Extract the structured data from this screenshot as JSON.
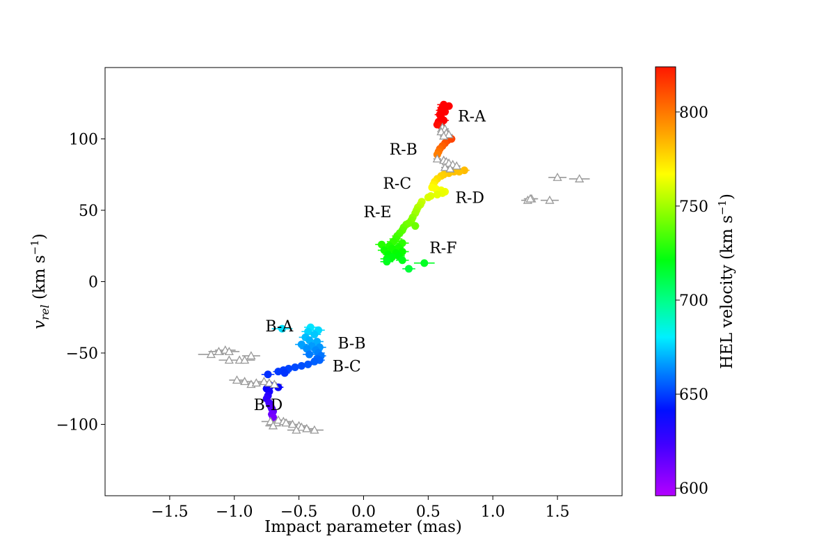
{
  "chart_data": {
    "type": "scatter",
    "xlabel": "Impact parameter (mas)",
    "ylabel_main": "v",
    "ylabel_sub": "rel",
    "ylabel_unit": " (km s",
    "ylabel_unit_sup": "−1",
    "ylabel_unit_end": ")",
    "xlim": [
      -2.0,
      2.0
    ],
    "ylim": [
      -150,
      150
    ],
    "x_ticks": [
      -1.5,
      -1.0,
      -0.5,
      0.0,
      0.5,
      1.0,
      1.5
    ],
    "x_tick_labels": [
      "−1.5",
      "−1.0",
      "−0.5",
      "0.0",
      "0.5",
      "1.0",
      "1.5"
    ],
    "y_ticks": [
      -100,
      -50,
      0,
      50,
      100
    ],
    "y_tick_labels": [
      "−100",
      "−50",
      "0",
      "50",
      "100"
    ],
    "colorbar": {
      "label": "HEL velocity (km s",
      "label_sup": "−1",
      "label_end": ")",
      "vmin": 596,
      "vmax": 824,
      "ticks": [
        600,
        650,
        700,
        750,
        800
      ],
      "tick_labels": [
        "600",
        "650",
        "700",
        "750",
        "800"
      ],
      "colormap": "gist_rainbow"
    },
    "hel_offset": 712,
    "annotations": [
      {
        "text": "R-A",
        "x": 0.73,
        "y": 116
      },
      {
        "text": "R-B",
        "x": 0.2,
        "y": 93
      },
      {
        "text": "R-C",
        "x": 0.15,
        "y": 69
      },
      {
        "text": "R-D",
        "x": 0.71,
        "y": 59
      },
      {
        "text": "R-E",
        "x": 0.0,
        "y": 49
      },
      {
        "text": "R-F",
        "x": 0.51,
        "y": 24
      },
      {
        "text": "B-A",
        "x": -0.76,
        "y": -31
      },
      {
        "text": "B-B",
        "x": -0.2,
        "y": -43
      },
      {
        "text": "B-C",
        "x": -0.24,
        "y": -59
      },
      {
        "text": "B-D",
        "x": -0.85,
        "y": -86
      }
    ],
    "series": [
      {
        "marker": "circle",
        "points": [
          [
            0.62,
            124,
            0.05
          ],
          [
            0.61,
            122,
            0.04
          ],
          [
            0.6,
            120,
            0.04
          ],
          [
            0.63,
            119,
            0.03
          ],
          [
            0.59,
            117,
            0.04
          ],
          [
            0.6,
            115,
            0.03
          ],
          [
            0.62,
            113,
            0.04
          ],
          [
            0.58,
            112,
            0.03
          ],
          [
            0.57,
            110,
            0.03
          ],
          [
            0.6,
            109,
            0.03
          ],
          [
            0.66,
            123,
            0.03
          ],
          [
            0.68,
            100,
            0.03
          ],
          [
            0.65,
            99,
            0.03
          ],
          [
            0.63,
            97,
            0.03
          ],
          [
            0.61,
            95,
            0.03
          ],
          [
            0.59,
            93,
            0.02
          ],
          [
            0.58,
            91,
            0.02
          ],
          [
            0.57,
            89,
            0.02
          ],
          [
            0.78,
            78,
            0.04
          ],
          [
            0.74,
            77,
            0.04
          ],
          [
            0.7,
            77,
            0.03
          ],
          [
            0.66,
            76,
            0.03
          ],
          [
            0.62,
            75,
            0.03
          ],
          [
            0.6,
            74,
            0.03
          ],
          [
            0.57,
            72,
            0.02
          ],
          [
            0.55,
            70,
            0.02
          ],
          [
            0.54,
            68,
            0.02
          ],
          [
            0.53,
            66,
            0.02
          ],
          [
            0.56,
            65,
            0.02
          ],
          [
            0.6,
            64,
            0.02
          ],
          [
            0.63,
            63,
            0.02
          ],
          [
            0.61,
            62,
            0.02
          ],
          [
            0.57,
            61,
            0.02
          ],
          [
            0.52,
            60,
            0.02
          ],
          [
            0.5,
            59,
            0.02
          ],
          [
            0.45,
            56,
            0.03
          ],
          [
            0.44,
            54,
            0.03
          ],
          [
            0.42,
            52,
            0.03
          ],
          [
            0.41,
            50,
            0.03
          ],
          [
            0.4,
            48,
            0.03
          ],
          [
            0.38,
            45,
            0.03
          ],
          [
            0.37,
            43,
            0.03
          ],
          [
            0.35,
            41,
            0.03
          ],
          [
            0.33,
            40,
            0.03
          ],
          [
            0.4,
            39,
            0.03
          ],
          [
            0.31,
            38,
            0.03
          ],
          [
            0.3,
            36,
            0.03
          ],
          [
            0.28,
            34,
            0.03
          ],
          [
            0.26,
            32,
            0.04
          ],
          [
            0.25,
            30,
            0.05
          ],
          [
            0.23,
            28,
            0.05
          ],
          [
            0.3,
            27,
            0.05
          ],
          [
            0.14,
            26,
            0.05
          ],
          [
            0.2,
            25,
            0.05
          ],
          [
            0.27,
            24,
            0.04
          ],
          [
            0.22,
            23,
            0.04
          ],
          [
            0.16,
            22,
            0.05
          ],
          [
            0.3,
            21,
            0.05
          ],
          [
            0.25,
            20,
            0.05
          ],
          [
            0.19,
            19,
            0.04
          ],
          [
            0.27,
            18,
            0.05
          ],
          [
            0.22,
            17,
            0.04
          ],
          [
            0.18,
            16,
            0.05
          ],
          [
            0.3,
            15,
            0.05
          ],
          [
            0.18,
            14,
            0.05
          ],
          [
            0.47,
            13,
            0.08
          ],
          [
            0.35,
            9,
            0.05
          ],
          [
            -0.41,
            -32,
            0.05
          ],
          [
            -0.35,
            -34,
            0.05
          ],
          [
            -0.43,
            -35,
            0.05
          ],
          [
            -0.63,
            -33,
            0.08
          ],
          [
            -0.38,
            -37,
            0.05
          ],
          [
            -0.45,
            -39,
            0.05
          ],
          [
            -0.42,
            -41,
            0.05
          ],
          [
            -0.36,
            -42,
            0.05
          ],
          [
            -0.48,
            -44,
            0.05
          ],
          [
            -0.4,
            -45,
            0.05
          ],
          [
            -0.34,
            -46,
            0.05
          ],
          [
            -0.44,
            -47,
            0.05
          ],
          [
            -0.37,
            -48,
            0.05
          ],
          [
            -0.35,
            -50,
            0.05
          ],
          [
            -0.42,
            -51,
            0.05
          ],
          [
            -0.33,
            -52,
            0.04
          ],
          [
            -0.36,
            -54,
            0.04
          ],
          [
            -0.34,
            -55,
            0.04
          ],
          [
            -0.38,
            -56,
            0.04
          ],
          [
            -0.43,
            -58,
            0.04
          ],
          [
            -0.48,
            -59,
            0.04
          ],
          [
            -0.53,
            -60,
            0.04
          ],
          [
            -0.58,
            -61,
            0.04
          ],
          [
            -0.62,
            -62,
            0.04
          ],
          [
            -0.66,
            -63,
            0.04
          ],
          [
            -0.61,
            -64,
            0.04
          ],
          [
            -0.74,
            -65,
            0.05
          ],
          [
            -0.72,
            -73,
            0.04
          ],
          [
            -0.66,
            -74,
            0.04
          ],
          [
            -0.75,
            -75,
            0.03
          ],
          [
            -0.73,
            -77,
            0.03
          ],
          [
            -0.74,
            -80,
            0.03
          ],
          [
            -0.75,
            -82,
            0.03
          ],
          [
            -0.73,
            -85,
            0.03
          ],
          [
            -0.72,
            -87,
            0.03
          ],
          [
            -0.71,
            -89,
            0.03
          ],
          [
            -0.7,
            -91,
            0.03
          ],
          [
            -0.71,
            -93,
            0.03
          ],
          [
            -0.7,
            -95,
            0.03
          ]
        ]
      },
      {
        "marker": "triangle",
        "color": "#999999",
        "points": [
          [
            0.61,
            108,
            0.03
          ],
          [
            0.63,
            107,
            0.03
          ],
          [
            0.6,
            105,
            0.03
          ],
          [
            0.64,
            104,
            0.03
          ],
          [
            0.66,
            103,
            0.03
          ],
          [
            0.62,
            102,
            0.03
          ],
          [
            0.57,
            86,
            0.03
          ],
          [
            0.62,
            85,
            0.03
          ],
          [
            0.64,
            84,
            0.03
          ],
          [
            0.66,
            83,
            0.03
          ],
          [
            0.69,
            82,
            0.03
          ],
          [
            0.72,
            81,
            0.03
          ],
          [
            0.63,
            80,
            0.03
          ],
          [
            0.67,
            79,
            0.03
          ],
          [
            1.5,
            73,
            0.07
          ],
          [
            1.67,
            72,
            0.08
          ],
          [
            1.3,
            58,
            0.05
          ],
          [
            1.27,
            57,
            0.05
          ],
          [
            1.29,
            58,
            0.05
          ],
          [
            1.44,
            57,
            0.07
          ],
          [
            -1.12,
            -49,
            0.08
          ],
          [
            -1.07,
            -48,
            0.08
          ],
          [
            -1.04,
            -49,
            0.08
          ],
          [
            -1.18,
            -51,
            0.1
          ],
          [
            -0.87,
            -52,
            0.07
          ],
          [
            -1.04,
            -55,
            0.08
          ],
          [
            -0.96,
            -55,
            0.08
          ],
          [
            -0.92,
            -55,
            0.08
          ],
          [
            -0.98,
            -69,
            0.06
          ],
          [
            -0.92,
            -70,
            0.06
          ],
          [
            -0.87,
            -72,
            0.06
          ],
          [
            -0.83,
            -71,
            0.06
          ],
          [
            -0.77,
            -70,
            0.06
          ],
          [
            -0.73,
            -71,
            0.06
          ],
          [
            -0.69,
            -72,
            0.06
          ],
          [
            -0.72,
            -98,
            0.07
          ],
          [
            -0.66,
            -97,
            0.07
          ],
          [
            -0.62,
            -98,
            0.06
          ],
          [
            -0.6,
            -99,
            0.06
          ],
          [
            -0.55,
            -100,
            0.06
          ],
          [
            -0.5,
            -101,
            0.06
          ],
          [
            -0.48,
            -102,
            0.06
          ],
          [
            -0.44,
            -103,
            0.06
          ],
          [
            -0.52,
            -104,
            0.07
          ],
          [
            -0.38,
            -104,
            0.07
          ],
          [
            -0.7,
            -101,
            0.06
          ]
        ]
      }
    ]
  }
}
